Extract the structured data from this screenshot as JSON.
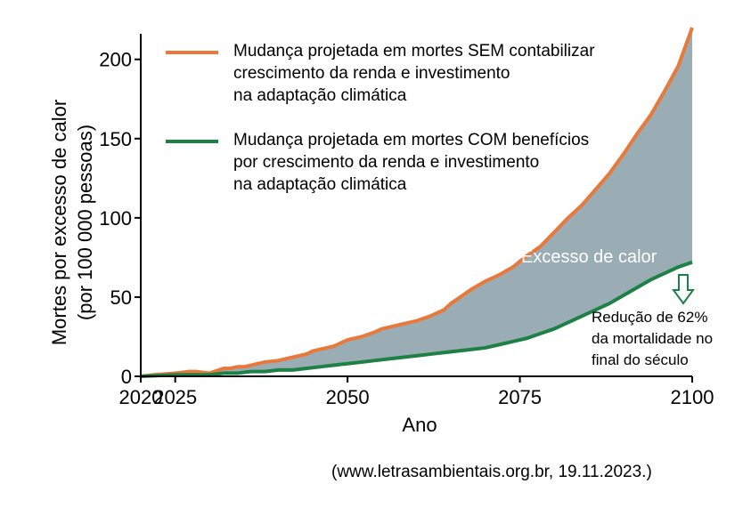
{
  "chart_data": {
    "type": "area",
    "xlabel": "Ano",
    "ylabel": "Mortes por excesso de calor",
    "ylabel2": "(por 100 000 pessoas)",
    "xlim": [
      2020,
      2100
    ],
    "ylim": [
      0,
      215
    ],
    "x_ticks": [
      2020,
      2025,
      2050,
      2075,
      2100
    ],
    "x_tick_labels": [
      "2020",
      "2025",
      "2050",
      "2075",
      "2100"
    ],
    "y_ticks": [
      0,
      50,
      100,
      150,
      200
    ],
    "y_tick_labels": [
      "0",
      "50",
      "100",
      "150",
      "200"
    ],
    "fill_label": "Excesso de calor",
    "fill_color": "#9aadb5",
    "series": [
      {
        "name": "sem",
        "color": "#e8793b",
        "legend_lines": [
          "Mudança projetada em mortes SEM contabilizar",
          "crescimento da renda e investimento",
          "na adaptação climática"
        ],
        "x": [
          2020,
          2022,
          2025,
          2027,
          2028,
          2030,
          2032,
          2033,
          2034,
          2035,
          2036,
          2037,
          2038,
          2040,
          2042,
          2044,
          2045,
          2046,
          2048,
          2050,
          2052,
          2054,
          2055,
          2056,
          2058,
          2060,
          2062,
          2064,
          2065,
          2066,
          2067,
          2068,
          2070,
          2072,
          2074,
          2076,
          2078,
          2080,
          2082,
          2084,
          2086,
          2088,
          2090,
          2092,
          2094,
          2096,
          2098,
          2100
        ],
        "values": [
          0,
          1,
          2,
          3,
          3,
          2,
          5,
          5,
          6,
          6,
          7,
          8,
          9,
          10,
          12,
          14,
          16,
          17,
          19,
          23,
          25,
          28,
          30,
          31,
          33,
          35,
          38,
          42,
          46,
          49,
          52,
          55,
          60,
          64,
          69,
          76,
          82,
          91,
          100,
          108,
          118,
          128,
          140,
          153,
          165,
          180,
          196,
          220
        ]
      },
      {
        "name": "com",
        "color": "#1d8146",
        "legend_lines": [
          "Mudança projetada em mortes COM benefícios",
          "por crescimento da renda e investimento",
          "na adaptação climática"
        ],
        "x": [
          2020,
          2025,
          2028,
          2030,
          2032,
          2034,
          2036,
          2038,
          2040,
          2042,
          2044,
          2046,
          2048,
          2050,
          2052,
          2054,
          2056,
          2058,
          2060,
          2062,
          2064,
          2066,
          2068,
          2070,
          2072,
          2074,
          2076,
          2078,
          2080,
          2082,
          2084,
          2086,
          2088,
          2090,
          2092,
          2094,
          2096,
          2098,
          2100
        ],
        "values": [
          0,
          1,
          1,
          1,
          2,
          2,
          3,
          3,
          4,
          4,
          5,
          6,
          7,
          8,
          9,
          10,
          11,
          12,
          13,
          14,
          15,
          16,
          17,
          18,
          20,
          22,
          24,
          27,
          30,
          34,
          38,
          42,
          46,
          51,
          56,
          61,
          65,
          69,
          72
        ]
      }
    ],
    "annotation_lines": [
      "Redução de 62%",
      "da mortalidade no",
      "final do século"
    ],
    "annotation_color": "#1d8146"
  },
  "source": "(www.letrasambientais.org.br, 19.11.2023.)"
}
